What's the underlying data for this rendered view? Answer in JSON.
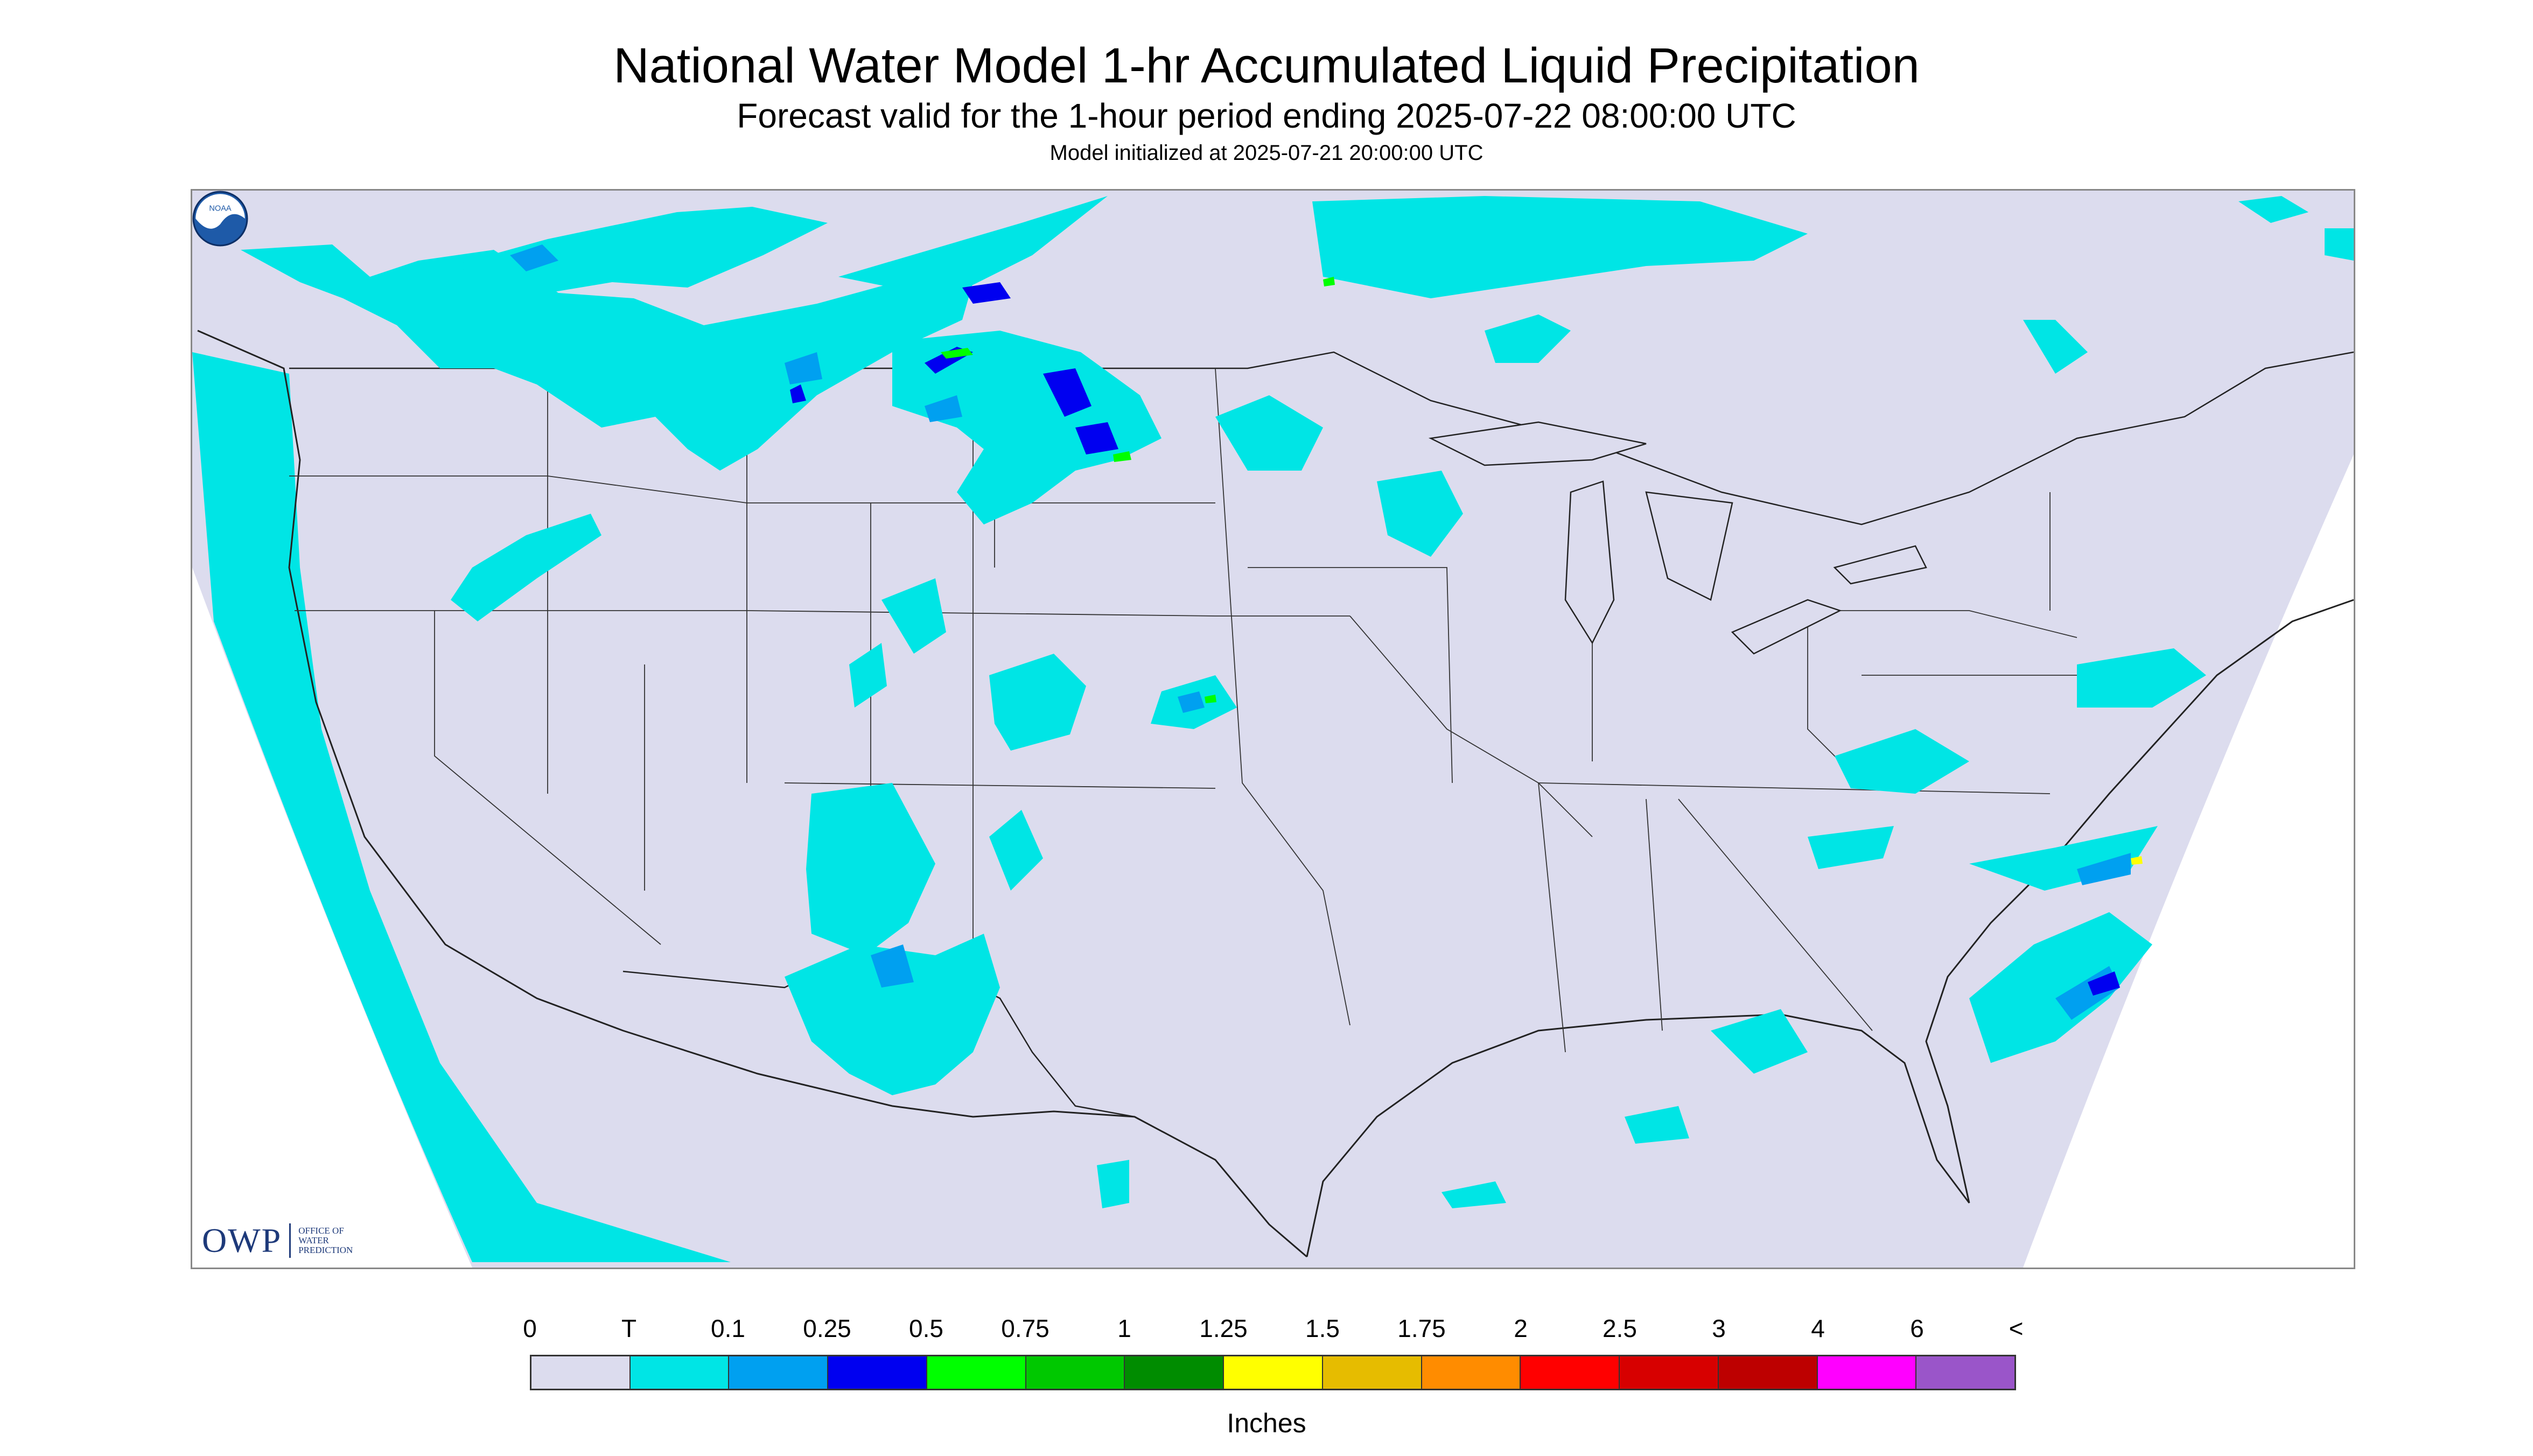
{
  "header": {
    "title": "National Water Model 1-hr Accumulated Liquid Precipitation",
    "subtitle": "Forecast valid for the 1-hour period ending 2025-07-22 08:00:00 UTC",
    "init_line": "Model initialized at 2025-07-21 20:00:00 UTC"
  },
  "map": {
    "background_color": "#dcdcee",
    "boundary_color": "#222222",
    "region": "Contiguous United States with southern Canada and northern Mexico"
  },
  "logos": {
    "owp": {
      "abbr": "OWP",
      "name": "OFFICE OF\nWATER\nPREDICTION"
    },
    "noaa": {
      "text": "NOAA",
      "icon": "noaa-seal-icon"
    }
  },
  "legend": {
    "labels": [
      "0",
      "T",
      "0.1",
      "0.25",
      "0.5",
      "0.75",
      "1",
      "1.25",
      "1.5",
      "1.75",
      "2",
      "2.5",
      "3",
      "4",
      "6",
      "<"
    ],
    "colors": [
      "#dcdcee",
      "#00e5e5",
      "#00a0f0",
      "#0000f0",
      "#00ff00",
      "#00c800",
      "#008c00",
      "#ffff00",
      "#e6bc00",
      "#ff8c00",
      "#ff0000",
      "#d70000",
      "#bd0000",
      "#ff00ff",
      "#9a55c9"
    ],
    "units": "Inches"
  }
}
